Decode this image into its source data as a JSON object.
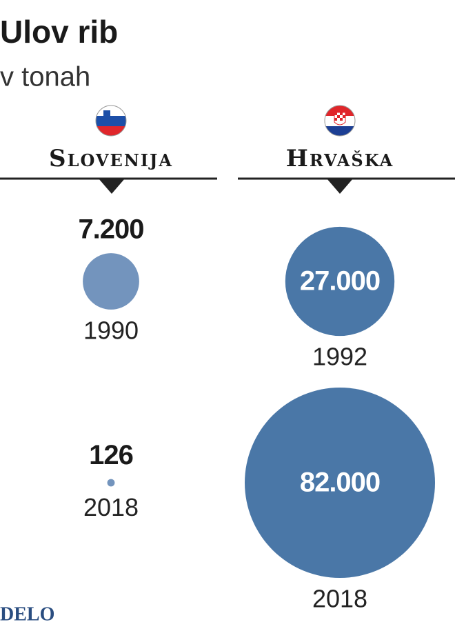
{
  "chart_data": {
    "type": "bubble",
    "title": "Ulov rib",
    "subtitle": "v tonah",
    "source": "DELO",
    "series": [
      {
        "name": "Slovenija",
        "color": "#7394bd",
        "categories": [
          "1990",
          "2018"
        ],
        "values": [
          7200,
          126
        ],
        "value_labels": [
          "7.200",
          "126"
        ]
      },
      {
        "name": "Hrvaška",
        "color": "#4a77a7",
        "categories": [
          "1992",
          "2018"
        ],
        "values": [
          27000,
          82000
        ],
        "value_labels": [
          "27.000",
          "82.000"
        ]
      }
    ]
  }
}
